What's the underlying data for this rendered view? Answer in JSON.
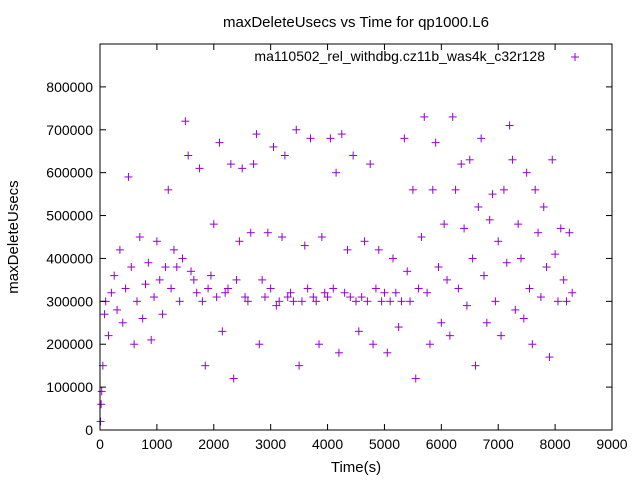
{
  "chart_data": {
    "type": "scatter",
    "title": "maxDeleteUsecs vs Time for qp1000.L6",
    "xlabel": "Time(s)",
    "ylabel": "maxDeleteUsecs",
    "xlim": [
      0,
      9000
    ],
    "ylim": [
      0,
      900000
    ],
    "x_ticks": [
      "0",
      "1000",
      "2000",
      "3000",
      "4000",
      "5000",
      "6000",
      "7000",
      "8000",
      "9000"
    ],
    "y_ticks": [
      "0",
      "100000",
      "200000",
      "300000",
      "400000",
      "500000",
      "600000",
      "700000",
      "800000"
    ],
    "legend": {
      "label": "ma110502_rel_withdbg.cz11b_was4k_c32r128",
      "position": "top-right"
    },
    "grid": false,
    "series": [
      {
        "name": "ma110502_rel_withdbg.cz11b_was4k_c32r128",
        "color": "#9400d3",
        "marker": "+",
        "points": [
          [
            10,
            20000
          ],
          [
            20,
            60000
          ],
          [
            30,
            90000
          ],
          [
            50,
            150000
          ],
          [
            80,
            270000
          ],
          [
            100,
            300000
          ],
          [
            150,
            220000
          ],
          [
            200,
            320000
          ],
          [
            250,
            360000
          ],
          [
            300,
            280000
          ],
          [
            350,
            420000
          ],
          [
            400,
            250000
          ],
          [
            450,
            330000
          ],
          [
            500,
            590000
          ],
          [
            550,
            380000
          ],
          [
            600,
            200000
          ],
          [
            650,
            300000
          ],
          [
            700,
            450000
          ],
          [
            750,
            260000
          ],
          [
            800,
            340000
          ],
          [
            850,
            390000
          ],
          [
            900,
            210000
          ],
          [
            950,
            310000
          ],
          [
            1000,
            440000
          ],
          [
            1050,
            350000
          ],
          [
            1100,
            270000
          ],
          [
            1150,
            380000
          ],
          [
            1200,
            560000
          ],
          [
            1250,
            330000
          ],
          [
            1300,
            420000
          ],
          [
            1350,
            380000
          ],
          [
            1400,
            300000
          ],
          [
            1450,
            400000
          ],
          [
            1500,
            720000
          ],
          [
            1550,
            640000
          ],
          [
            1600,
            370000
          ],
          [
            1650,
            350000
          ],
          [
            1700,
            320000
          ],
          [
            1750,
            610000
          ],
          [
            1800,
            300000
          ],
          [
            1850,
            150000
          ],
          [
            1900,
            330000
          ],
          [
            1950,
            360000
          ],
          [
            2000,
            480000
          ],
          [
            2050,
            310000
          ],
          [
            2100,
            670000
          ],
          [
            2150,
            230000
          ],
          [
            2200,
            320000
          ],
          [
            2250,
            330000
          ],
          [
            2300,
            620000
          ],
          [
            2350,
            120000
          ],
          [
            2400,
            350000
          ],
          [
            2450,
            440000
          ],
          [
            2500,
            610000
          ],
          [
            2550,
            310000
          ],
          [
            2600,
            300000
          ],
          [
            2650,
            460000
          ],
          [
            2700,
            620000
          ],
          [
            2750,
            690000
          ],
          [
            2800,
            200000
          ],
          [
            2850,
            350000
          ],
          [
            2900,
            310000
          ],
          [
            2950,
            460000
          ],
          [
            3000,
            330000
          ],
          [
            3050,
            660000
          ],
          [
            3100,
            290000
          ],
          [
            3150,
            300000
          ],
          [
            3200,
            450000
          ],
          [
            3250,
            640000
          ],
          [
            3300,
            310000
          ],
          [
            3350,
            320000
          ],
          [
            3400,
            300000
          ],
          [
            3450,
            700000
          ],
          [
            3500,
            150000
          ],
          [
            3550,
            300000
          ],
          [
            3600,
            430000
          ],
          [
            3650,
            330000
          ],
          [
            3700,
            680000
          ],
          [
            3750,
            310000
          ],
          [
            3800,
            300000
          ],
          [
            3850,
            200000
          ],
          [
            3900,
            450000
          ],
          [
            3950,
            320000
          ],
          [
            4000,
            310000
          ],
          [
            4050,
            680000
          ],
          [
            4100,
            330000
          ],
          [
            4150,
            600000
          ],
          [
            4200,
            180000
          ],
          [
            4250,
            690000
          ],
          [
            4300,
            320000
          ],
          [
            4350,
            420000
          ],
          [
            4400,
            310000
          ],
          [
            4450,
            640000
          ],
          [
            4500,
            300000
          ],
          [
            4550,
            230000
          ],
          [
            4600,
            310000
          ],
          [
            4650,
            440000
          ],
          [
            4700,
            300000
          ],
          [
            4750,
            620000
          ],
          [
            4800,
            200000
          ],
          [
            4850,
            330000
          ],
          [
            4900,
            420000
          ],
          [
            4950,
            300000
          ],
          [
            5000,
            320000
          ],
          [
            5050,
            180000
          ],
          [
            5100,
            300000
          ],
          [
            5150,
            400000
          ],
          [
            5200,
            320000
          ],
          [
            5250,
            240000
          ],
          [
            5300,
            300000
          ],
          [
            5350,
            680000
          ],
          [
            5400,
            370000
          ],
          [
            5450,
            300000
          ],
          [
            5500,
            560000
          ],
          [
            5550,
            120000
          ],
          [
            5600,
            330000
          ],
          [
            5650,
            450000
          ],
          [
            5700,
            730000
          ],
          [
            5750,
            320000
          ],
          [
            5800,
            200000
          ],
          [
            5850,
            560000
          ],
          [
            5900,
            670000
          ],
          [
            5950,
            380000
          ],
          [
            6000,
            250000
          ],
          [
            6050,
            480000
          ],
          [
            6100,
            350000
          ],
          [
            6150,
            220000
          ],
          [
            6200,
            730000
          ],
          [
            6250,
            560000
          ],
          [
            6300,
            330000
          ],
          [
            6350,
            620000
          ],
          [
            6400,
            470000
          ],
          [
            6450,
            290000
          ],
          [
            6500,
            630000
          ],
          [
            6550,
            400000
          ],
          [
            6600,
            150000
          ],
          [
            6650,
            520000
          ],
          [
            6700,
            680000
          ],
          [
            6750,
            360000
          ],
          [
            6800,
            250000
          ],
          [
            6850,
            490000
          ],
          [
            6900,
            550000
          ],
          [
            6950,
            300000
          ],
          [
            7000,
            440000
          ],
          [
            7050,
            220000
          ],
          [
            7100,
            560000
          ],
          [
            7150,
            390000
          ],
          [
            7200,
            710000
          ],
          [
            7250,
            630000
          ],
          [
            7300,
            280000
          ],
          [
            7350,
            480000
          ],
          [
            7400,
            400000
          ],
          [
            7450,
            260000
          ],
          [
            7500,
            600000
          ],
          [
            7550,
            330000
          ],
          [
            7600,
            200000
          ],
          [
            7650,
            560000
          ],
          [
            7700,
            460000
          ],
          [
            7750,
            310000
          ],
          [
            7800,
            520000
          ],
          [
            7850,
            380000
          ],
          [
            7900,
            170000
          ],
          [
            7950,
            630000
          ],
          [
            8000,
            410000
          ],
          [
            8050,
            300000
          ],
          [
            8100,
            470000
          ],
          [
            8150,
            350000
          ],
          [
            8200,
            300000
          ],
          [
            8250,
            460000
          ],
          [
            8300,
            320000
          ]
        ]
      }
    ]
  }
}
